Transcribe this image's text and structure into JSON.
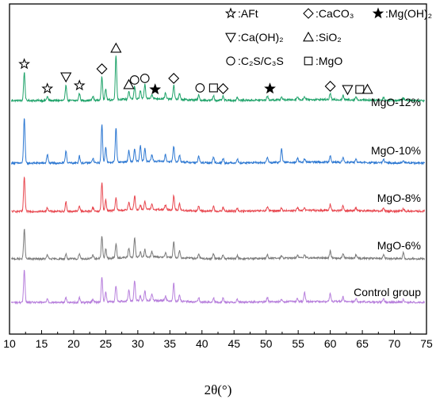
{
  "chart_data": {
    "type": "line",
    "xlabel": "2θ(°)",
    "xlim": [
      10,
      75
    ],
    "xticks": [
      10,
      15,
      20,
      25,
      30,
      35,
      40,
      45,
      50,
      55,
      60,
      65,
      70,
      75
    ],
    "y_axis_ticks_labeled": false,
    "grid": false,
    "legend_placement": "top-right",
    "legend": [
      {
        "symbol": "star-open",
        "label": "AFt"
      },
      {
        "symbol": "diamond-open",
        "label": "CaCO₃"
      },
      {
        "symbol": "star-filled",
        "label": "Mg(OH)₂"
      },
      {
        "symbol": "triangle-down-open",
        "label": "Ca(OH)₂"
      },
      {
        "symbol": "triangle-up-open",
        "label": "SiO₂"
      },
      {
        "symbol": "circle-open",
        "label": "C₂S/C₃S"
      },
      {
        "symbol": "square-open",
        "label": "MgO"
      }
    ],
    "series": [
      {
        "name": "MgO-12%",
        "color": "#1fa36a",
        "offset": 4,
        "markers": [
          {
            "x": 12.3,
            "symbol": "star-open"
          },
          {
            "x": 15.9,
            "symbol": "star-open"
          },
          {
            "x": 18.8,
            "symbol": "triangle-down-open"
          },
          {
            "x": 20.9,
            "symbol": "star-open"
          },
          {
            "x": 24.4,
            "symbol": "diamond-open"
          },
          {
            "x": 26.6,
            "symbol": "triangle-up-open"
          },
          {
            "x": 28.6,
            "symbol": "triangle-up-open"
          },
          {
            "x": 29.5,
            "symbol": "circle-open"
          },
          {
            "x": 31.1,
            "symbol": "circle-open"
          },
          {
            "x": 32.7,
            "symbol": "star-filled"
          },
          {
            "x": 35.6,
            "symbol": "diamond-open"
          },
          {
            "x": 39.7,
            "symbol": "circle-open"
          },
          {
            "x": 41.8,
            "symbol": "square-open"
          },
          {
            "x": 43.3,
            "symbol": "diamond-open"
          },
          {
            "x": 50.6,
            "symbol": "star-filled"
          },
          {
            "x": 60.0,
            "symbol": "diamond-open"
          },
          {
            "x": 62.7,
            "symbol": "triangle-down-open"
          },
          {
            "x": 64.6,
            "symbol": "square-open"
          },
          {
            "x": 65.8,
            "symbol": "triangle-up-open"
          }
        ]
      },
      {
        "name": "MgO-10%",
        "color": "#2d78d2",
        "offset": 3,
        "markers": []
      },
      {
        "name": "MgO-8%",
        "color": "#e8474f",
        "offset": 2,
        "markers": []
      },
      {
        "name": "MgO-6%",
        "color": "#7a7a7a",
        "offset": 1,
        "markers": []
      },
      {
        "name": "Control group",
        "color": "#b77fdc",
        "offset": 0,
        "markers": []
      }
    ],
    "peaks": [
      {
        "x": 12.3,
        "h": [
          42,
          38,
          44,
          58,
          36
        ]
      },
      {
        "x": 15.9,
        "h": [
          5,
          5,
          5,
          11,
          5
        ]
      },
      {
        "x": 18.8,
        "h": [
          6,
          6,
          12,
          16,
          20
        ]
      },
      {
        "x": 20.9,
        "h": [
          6,
          7,
          7,
          9,
          9
        ]
      },
      {
        "x": 23.0,
        "h": [
          4,
          5,
          5,
          6,
          5
        ]
      },
      {
        "x": 24.4,
        "h": [
          32,
          28,
          36,
          48,
          30
        ]
      },
      {
        "x": 25.0,
        "h": [
          12,
          12,
          14,
          20,
          14
        ]
      },
      {
        "x": 26.6,
        "h": [
          20,
          18,
          16,
          44,
          56
        ]
      },
      {
        "x": 28.6,
        "h": [
          14,
          12,
          10,
          14,
          10
        ]
      },
      {
        "x": 29.5,
        "h": [
          26,
          24,
          18,
          16,
          16
        ]
      },
      {
        "x": 30.4,
        "h": [
          6,
          6,
          6,
          20,
          10
        ]
      },
      {
        "x": 31.1,
        "h": [
          12,
          10,
          10,
          16,
          18
        ]
      },
      {
        "x": 32.2,
        "h": [
          8,
          7,
          6,
          8,
          6
        ]
      },
      {
        "x": 34.3,
        "h": [
          6,
          6,
          6,
          8,
          7
        ]
      },
      {
        "x": 35.6,
        "h": [
          22,
          20,
          18,
          20,
          18
        ]
      },
      {
        "x": 36.5,
        "h": [
          8,
          9,
          8,
          9,
          7
        ]
      },
      {
        "x": 39.5,
        "h": [
          6,
          6,
          6,
          8,
          6
        ]
      },
      {
        "x": 41.8,
        "h": [
          6,
          6,
          6,
          8,
          6
        ]
      },
      {
        "x": 43.3,
        "h": [
          5,
          5,
          5,
          6,
          5
        ]
      },
      {
        "x": 45.5,
        "h": [
          4,
          4,
          4,
          5,
          4
        ]
      },
      {
        "x": 50.2,
        "h": [
          6,
          5,
          5,
          7,
          5
        ]
      },
      {
        "x": 52.4,
        "h": [
          3,
          3,
          3,
          18,
          4
        ]
      },
      {
        "x": 54.9,
        "h": [
          4,
          4,
          4,
          5,
          4
        ]
      },
      {
        "x": 56.0,
        "h": [
          12,
          4,
          4,
          4,
          4
        ]
      },
      {
        "x": 60.0,
        "h": [
          10,
          9,
          8,
          9,
          8
        ]
      },
      {
        "x": 62.0,
        "h": [
          6,
          6,
          6,
          6,
          5
        ]
      },
      {
        "x": 64.0,
        "h": [
          4,
          4,
          4,
          4,
          4
        ]
      },
      {
        "x": 68.3,
        "h": [
          4,
          5,
          4,
          4,
          4
        ]
      },
      {
        "x": 71.4,
        "h": [
          3,
          8,
          3,
          3,
          3
        ]
      }
    ]
  }
}
